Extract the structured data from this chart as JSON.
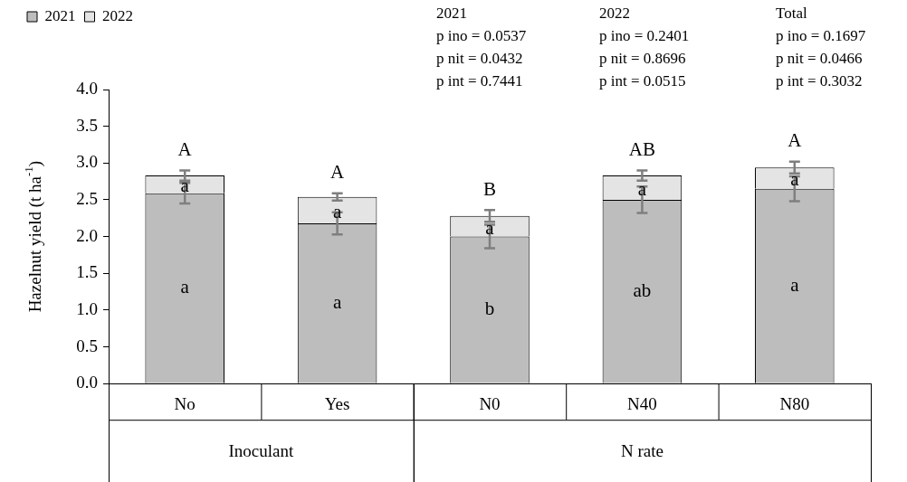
{
  "chart_data": {
    "type": "bar",
    "stacked": true,
    "ylabel": "Hazelnut yield (t ha$^{-1}$)",
    "categories": [
      "No",
      "Yes",
      "N0",
      "N40",
      "N80"
    ],
    "series": [
      {
        "name": "2021",
        "color": "#bdbdbd",
        "values": [
          2.59,
          2.18,
          2.0,
          2.5,
          2.65
        ],
        "errors": [
          0.14,
          0.15,
          0.16,
          0.18,
          0.17
        ]
      },
      {
        "name": "2022",
        "color": "#e4e4e4",
        "values": [
          0.24,
          0.36,
          0.28,
          0.33,
          0.29
        ],
        "errors": [
          0.07,
          0.05,
          0.08,
          0.07,
          0.08
        ]
      }
    ],
    "ylim": [
      0,
      4
    ],
    "yticks": [
      {
        "value": 0,
        "label": "0.0"
      },
      {
        "value": 0.5,
        "label": "0.5"
      },
      {
        "value": 1,
        "label": "1.0"
      },
      {
        "value": 1.5,
        "label": "1.5"
      },
      {
        "value": 2,
        "label": "2.0"
      },
      {
        "value": 2.5,
        "label": "2.5"
      },
      {
        "value": 3,
        "label": "3.0"
      },
      {
        "value": 3.5,
        "label": "3.5"
      },
      {
        "value": 4,
        "label": "4.0"
      }
    ],
    "grid": false,
    "legend": "top left",
    "annotations": [
      "A",
      "A",
      "B",
      "AB",
      "A",
      "a",
      "a",
      "a",
      "a",
      "a",
      "a",
      "a",
      "b",
      "ab",
      "a",
      "Inoculant",
      "N rate",
      "2021\np ino = 0.0537\np nit = 0.0432\np int = 0.7441",
      "2022\np ino = 0.2401\np nit = 0.8696\np int = 0.0515",
      "Total\np ino = 0.1697\np nit = 0.0466\np int = 0.3032"
    ]
  }
}
